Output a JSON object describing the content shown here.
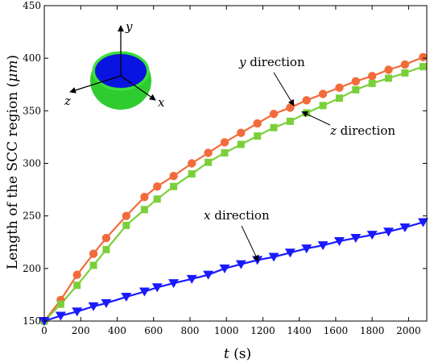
{
  "chart_data": {
    "type": "line",
    "xlabel_var": "t",
    "xlabel_unit": "(s)",
    "ylabel_text": "Length of the SCC region (",
    "ylabel_unit": "μm",
    "ylabel_close": ")",
    "xlim": [
      0,
      2100
    ],
    "ylim": [
      150,
      450
    ],
    "xticks": [
      0,
      200,
      400,
      600,
      800,
      1000,
      1200,
      1400,
      1600,
      1800,
      2000
    ],
    "yticks": [
      150,
      200,
      250,
      300,
      350,
      400,
      450
    ],
    "grid": false,
    "series": [
      {
        "name": "y direction",
        "color": "#f26b3a",
        "marker": "circle",
        "x": [
          0,
          90,
          180,
          270,
          340,
          450,
          550,
          620,
          710,
          810,
          900,
          990,
          1080,
          1170,
          1260,
          1350,
          1440,
          1530,
          1620,
          1710,
          1800,
          1890,
          1980,
          2080
        ],
        "y": [
          150,
          170,
          194,
          214,
          229,
          250,
          268,
          278,
          288,
          300,
          310,
          320,
          329,
          338,
          347,
          353,
          360,
          366,
          372,
          378,
          383,
          389,
          394,
          401
        ]
      },
      {
        "name": "z direction",
        "color": "#7bd03a",
        "marker": "square",
        "x": [
          0,
          90,
          180,
          270,
          340,
          450,
          550,
          620,
          710,
          810,
          900,
          990,
          1080,
          1170,
          1260,
          1350,
          1440,
          1530,
          1620,
          1710,
          1800,
          1890,
          1980,
          2080
        ],
        "y": [
          150,
          166,
          184,
          203,
          218,
          241,
          256,
          266,
          278,
          290,
          301,
          310,
          318,
          326,
          334,
          340,
          348,
          355,
          362,
          370,
          376,
          381,
          386,
          392
        ]
      },
      {
        "name": "x direction",
        "color": "#1a1aff",
        "marker": "triangle-down",
        "x": [
          0,
          90,
          180,
          270,
          340,
          450,
          550,
          620,
          710,
          810,
          900,
          990,
          1080,
          1170,
          1260,
          1350,
          1440,
          1530,
          1620,
          1710,
          1800,
          1890,
          1980,
          2080
        ],
        "y": [
          150,
          155,
          159,
          164,
          167,
          173,
          178,
          182,
          186,
          190,
          194,
          200,
          204,
          208,
          211,
          215,
          219,
          222,
          226,
          229,
          232,
          235,
          239,
          244
        ]
      }
    ],
    "annotations": [
      {
        "var": "y",
        "text": " direction",
        "series": "y direction",
        "arrow_to": [
          1370,
          355
        ]
      },
      {
        "var": "z",
        "text": " direction",
        "series": "z direction",
        "arrow_to": [
          1415,
          349
        ]
      },
      {
        "var": "x",
        "text": " direction",
        "series": "x direction",
        "arrow_to": [
          1175,
          207
        ]
      }
    ],
    "inset": {
      "axes": [
        "y",
        "x",
        "z"
      ],
      "colors": {
        "shell": "#2ecc2e",
        "inner": "#0a14e0"
      }
    }
  }
}
